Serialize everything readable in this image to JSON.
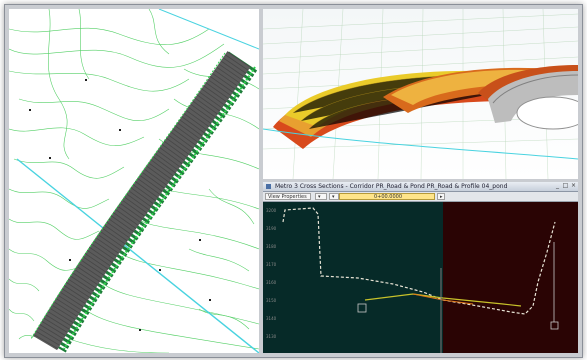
{
  "xs_window": {
    "title": "Metro 3 Cross Sections - Corridor PR_Road & Pond PR_Road & Profile 04_pond",
    "toolbar": {
      "view_select": "View Properties",
      "station_select": "0+00.0000"
    },
    "window_buttons": [
      "_",
      "□",
      "×"
    ]
  },
  "colors": {
    "plan_background": "#ffffff",
    "contour": "#35c74a",
    "road_surface": "#5b5b5b",
    "alignment": "#49d3e0",
    "xs_left_panel": "#062a28",
    "xs_right_panel": "#2a0404",
    "surface_trace": "#e8e4d6",
    "design_line": "#c8c22a"
  },
  "icons": [
    "window-icon",
    "minimize-icon",
    "maximize-icon",
    "close-icon",
    "dropdown-arrow-icon"
  ]
}
